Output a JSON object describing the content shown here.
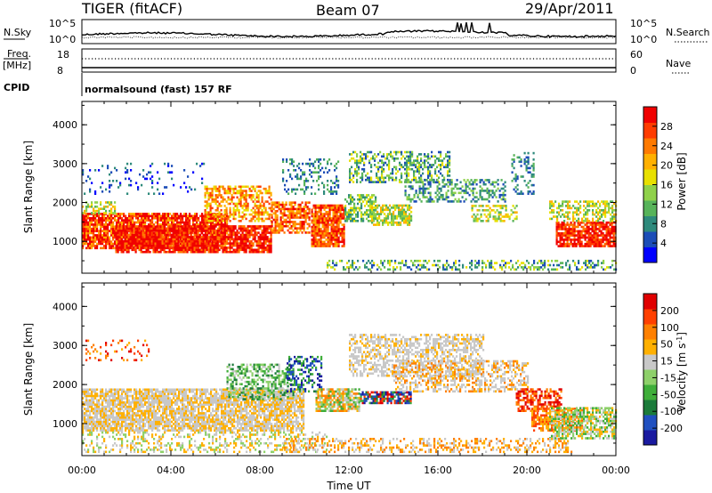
{
  "header": {
    "station": "TIGER (fitACF)",
    "beam": "Beam 07",
    "date": "29/Apr/2011"
  },
  "top_panels": {
    "nsky_label": "N.Sky",
    "nsky_ticks": [
      "10^5",
      "10^0"
    ],
    "nsearch_label": "N.Search",
    "nsearch_ticks": [
      "10^5",
      "10^0"
    ],
    "freq_label_1": "Freq.",
    "freq_label_2": "[MHz]",
    "freq_ticks": [
      "18",
      "8"
    ],
    "nave_label": "Nave",
    "nave_ticks": [
      "60",
      "0"
    ],
    "cpid_label": "CPID",
    "cpid_text": "normalsound (fast) 157 RF"
  },
  "chart_data": [
    {
      "type": "heatmap",
      "panel": "power",
      "ylabel": "Slant Range [km]",
      "xlabel": "Time UT",
      "x_ticks": [
        "00:00",
        "04:00",
        "08:00",
        "12:00",
        "16:00",
        "20:00",
        "00:00"
      ],
      "x_range_hours": [
        0,
        24
      ],
      "y_ticks": [
        "1000",
        "2000",
        "3000",
        "4000"
      ],
      "ylim": [
        180,
        4600
      ],
      "colorbar_label": "Power [dB]",
      "colorbar_ticks": [
        "28",
        "24",
        "20",
        "16",
        "12",
        "8",
        "4"
      ],
      "colorbar_range": [
        0,
        30
      ],
      "colors": [
        "#0000ff",
        "#1c4db7",
        "#2e8a7c",
        "#57b35a",
        "#8fd14a",
        "#e8e000",
        "#ffb000",
        "#ff7a00",
        "#ff3c00",
        "#f00000"
      ]
    },
    {
      "type": "heatmap",
      "panel": "velocity",
      "ylabel": "Slant Range [km]",
      "xlabel": "Time UT",
      "x_ticks": [
        "00:00",
        "04:00",
        "08:00",
        "12:00",
        "16:00",
        "20:00",
        "00:00"
      ],
      "x_range_hours": [
        0,
        24
      ],
      "y_ticks": [
        "1000",
        "2000",
        "3000",
        "4000"
      ],
      "ylim": [
        180,
        4600
      ],
      "colorbar_label": "Velocity [m s^-1]",
      "colorbar_ticks": [
        "200",
        "100",
        "50",
        "15",
        "-15",
        "-50",
        "-100",
        "-200"
      ],
      "colorbar_range": [
        -250,
        250
      ],
      "colors": [
        "#1a1aa0",
        "#2050c0",
        "#1b7b3a",
        "#3fae3a",
        "#8ed06a",
        "#c8c8c8",
        "#ffb000",
        "#ff8000",
        "#ff4000",
        "#e00000"
      ]
    }
  ]
}
